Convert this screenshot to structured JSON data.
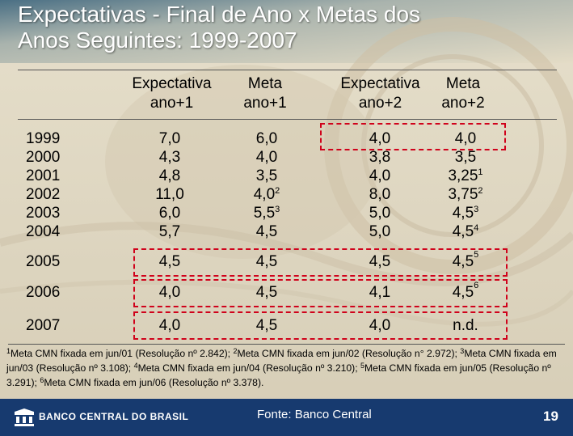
{
  "title": {
    "line1": "Expectativas - Final de Ano x Metas dos",
    "line2": "Anos Seguintes: 1999-2007"
  },
  "headers": [
    {
      "line1": "Expectativa",
      "line2": "ano+1"
    },
    {
      "line1": "Meta",
      "line2": "ano+1"
    },
    {
      "line1": "Expectativa",
      "line2": "ano+2"
    },
    {
      "line1": "Meta",
      "line2": "ano+2"
    }
  ],
  "block": {
    "years": [
      "1999",
      "2000",
      "2001",
      "2002",
      "2003",
      "2004"
    ],
    "exp1": [
      "7,0",
      "4,3",
      "4,8",
      "11,0",
      "6,0",
      "5,7"
    ],
    "meta1": [
      {
        "v": "6,0",
        "n": ""
      },
      {
        "v": "4,0",
        "n": ""
      },
      {
        "v": "3,5",
        "n": ""
      },
      {
        "v": "4,0",
        "n": "2"
      },
      {
        "v": "5,5",
        "n": "3"
      },
      {
        "v": "4,5",
        "n": ""
      }
    ],
    "exp2": [
      "4,0",
      "3,8",
      "4,0",
      "8,0",
      "5,0",
      "5,0"
    ],
    "meta2": [
      {
        "v": "4,0",
        "n": ""
      },
      {
        "v": "3,5",
        "n": ""
      },
      {
        "v": "3,25",
        "n": "1"
      },
      {
        "v": "3,75",
        "n": "2"
      },
      {
        "v": "4,5",
        "n": "3"
      },
      {
        "v": "4,5",
        "n": "4"
      }
    ]
  },
  "rows": [
    {
      "year": "2005",
      "exp1": "4,5",
      "meta1": "4,5",
      "exp2": "4,5",
      "meta2": "4,5",
      "meta2_note": "5"
    },
    {
      "year": "2006",
      "exp1": "4,0",
      "meta1": "4,5",
      "exp2": "4,1",
      "meta2": "4,5",
      "meta2_note": "6"
    },
    {
      "year": "2007",
      "exp1": "4,0",
      "meta1": "4,5",
      "exp2": "4,0",
      "meta2": "n.d.",
      "meta2_note": ""
    }
  ],
  "footnotes": [
    {
      "n": "1",
      "text": "Meta CMN fixada em jun/01 (Resolução nº 2.842);"
    },
    {
      "n": "2",
      "text": "Meta CMN fixada em jun/02 (Resolução n° 2.972);"
    },
    {
      "n": "3",
      "text": "Meta CMN fixada em jun/03 (Resolução nº 3.108);"
    },
    {
      "n": "4",
      "text": "Meta CMN fixada em jun/04 (Resolução nº 3.210);"
    },
    {
      "n": "5",
      "text": "Meta CMN fixada em jun/05 (Resolução nº 3.291);"
    },
    {
      "n": "6",
      "text": "Meta CMN fixada em jun/06 (Resolução nº 3.378)."
    }
  ],
  "footer": {
    "logo": "BANCO CENTRAL DO BRASIL",
    "source": "Fonte: Banco Central",
    "page": "19"
  },
  "colors": {
    "highlight": "#d0021b",
    "footer_bg": "#173a6f"
  }
}
